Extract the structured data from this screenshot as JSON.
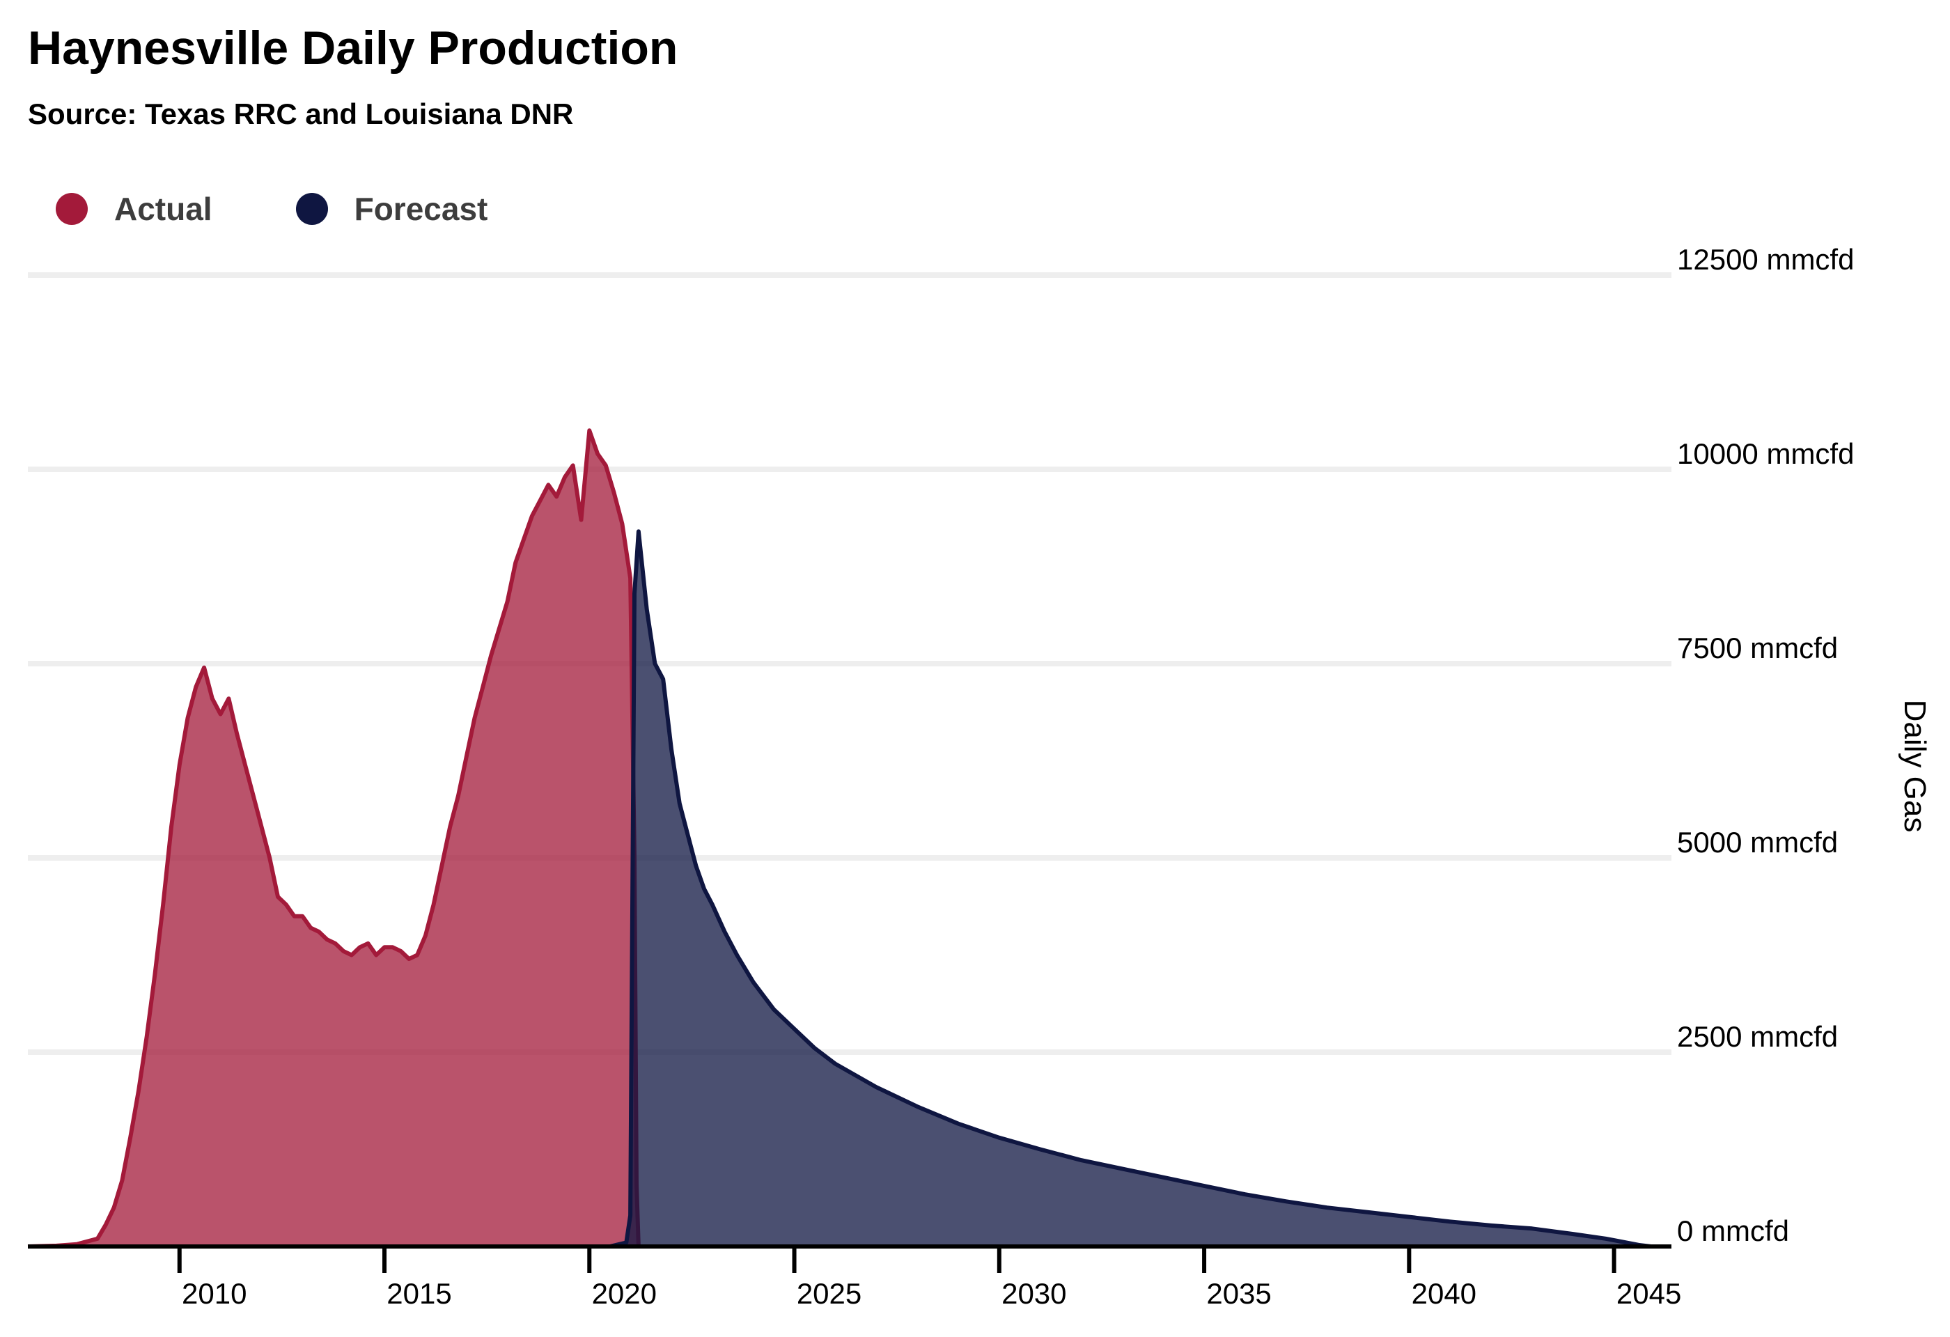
{
  "header": {
    "title": "Haynesville Daily Production",
    "subtitle": "Source: Texas RRC and Louisiana DNR"
  },
  "legend": [
    {
      "label": "Actual",
      "color": "#a31a3a"
    },
    {
      "label": "Forecast",
      "color": "#0f1641"
    }
  ],
  "chart_data": {
    "type": "area",
    "title": "Haynesville Daily Production",
    "subtitle": "Source: Texas RRC and Louisiana DNR",
    "xlabel": "",
    "ylabel": "Daily Gas",
    "xlim": [
      2006.3,
      2046.4
    ],
    "ylim": [
      0,
      12500
    ],
    "x_ticks": [
      2010,
      2015,
      2020,
      2025,
      2030,
      2035,
      2040,
      2045
    ],
    "x_tick_labels": [
      "2010",
      "2015",
      "2020",
      "2025",
      "2030",
      "2035",
      "2040",
      "2045"
    ],
    "y_ticks": [
      0,
      2500,
      5000,
      7500,
      10000,
      12500
    ],
    "y_tick_labels": [
      "0 mmcfd",
      "2500 mmcfd",
      "5000 mmcfd",
      "7500 mmcfd",
      "10000 mmcfd",
      "12500 mmcfd"
    ],
    "legend_position": "top-left",
    "grid": true,
    "series": [
      {
        "name": "Actual",
        "color": "#a31a3a",
        "x": [
          2006.3,
          2007.0,
          2007.5,
          2008.0,
          2008.2,
          2008.4,
          2008.6,
          2008.8,
          2009.0,
          2009.2,
          2009.4,
          2009.6,
          2009.8,
          2010.0,
          2010.2,
          2010.4,
          2010.6,
          2010.8,
          2011.0,
          2011.2,
          2011.4,
          2011.6,
          2011.8,
          2012.0,
          2012.2,
          2012.4,
          2012.6,
          2012.8,
          2013.0,
          2013.2,
          2013.4,
          2013.6,
          2013.8,
          2014.0,
          2014.2,
          2014.4,
          2014.6,
          2014.8,
          2015.0,
          2015.2,
          2015.4,
          2015.6,
          2015.8,
          2016.0,
          2016.2,
          2016.4,
          2016.6,
          2016.8,
          2017.0,
          2017.2,
          2017.4,
          2017.6,
          2017.8,
          2018.0,
          2018.2,
          2018.4,
          2018.6,
          2018.8,
          2019.0,
          2019.2,
          2019.4,
          2019.6,
          2019.8,
          2020.0,
          2020.2,
          2020.4,
          2020.6,
          2020.8,
          2021.0,
          2021.1,
          2021.15,
          2021.2
        ],
        "values": [
          0,
          10,
          30,
          100,
          280,
          500,
          850,
          1400,
          2000,
          2700,
          3500,
          4400,
          5400,
          6200,
          6800,
          7200,
          7450,
          7050,
          6850,
          7050,
          6600,
          6200,
          5800,
          5400,
          5000,
          4500,
          4400,
          4250,
          4250,
          4100,
          4050,
          3950,
          3900,
          3800,
          3750,
          3850,
          3900,
          3750,
          3850,
          3850,
          3800,
          3700,
          3750,
          4000,
          4400,
          4900,
          5400,
          5800,
          6300,
          6800,
          7200,
          7600,
          7950,
          8300,
          8800,
          9100,
          9400,
          9600,
          9800,
          9650,
          9900,
          10050,
          9350,
          10500,
          10200,
          10050,
          9700,
          9300,
          8600,
          5000,
          800,
          0
        ]
      },
      {
        "name": "Forecast",
        "color": "#0f1641",
        "x": [
          2006.3,
          2020.5,
          2020.9,
          2021.0,
          2021.1,
          2021.2,
          2021.4,
          2021.6,
          2021.8,
          2022.0,
          2022.2,
          2022.4,
          2022.6,
          2022.8,
          2023.0,
          2023.3,
          2023.6,
          2024.0,
          2024.5,
          2025.0,
          2025.5,
          2026.0,
          2027.0,
          2028.0,
          2029.0,
          2030.0,
          2031.0,
          2032.0,
          2033.0,
          2034.0,
          2035.0,
          2036.0,
          2037.0,
          2038.0,
          2039.0,
          2040.0,
          2041.0,
          2042.0,
          2043.0,
          2044.0,
          2044.8,
          2045.3,
          2045.6,
          2045.9,
          2046.4
        ],
        "values": [
          0,
          0,
          50,
          400,
          8400,
          9200,
          8200,
          7500,
          7300,
          6400,
          5700,
          5300,
          4900,
          4600,
          4400,
          4050,
          3750,
          3400,
          3050,
          2800,
          2550,
          2350,
          2050,
          1800,
          1580,
          1400,
          1250,
          1110,
          1000,
          890,
          780,
          670,
          580,
          500,
          440,
          380,
          320,
          270,
          230,
          160,
          100,
          50,
          20,
          0,
          0
        ]
      }
    ]
  }
}
